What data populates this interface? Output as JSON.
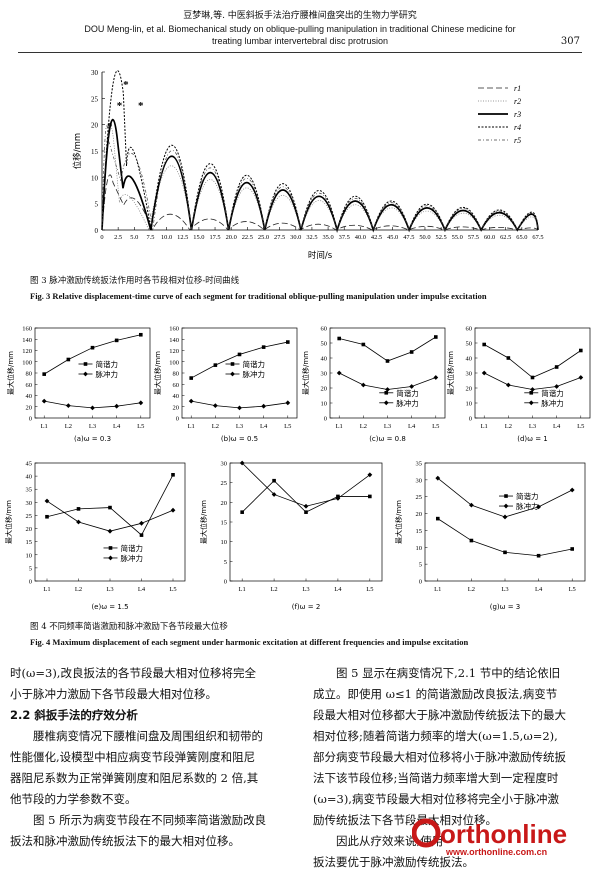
{
  "header": {
    "line1": "豆梦琳,等. 中医斜扳手法治疗腰椎间盘突出的生物力学研究",
    "line2": "DOU Meng-lin, et al.  Biomechanical study on oblique-pulling manipulation in traditional Chinese medicine for",
    "line3": "treating lumbar intervertebral disc protrusion",
    "page_number": "307"
  },
  "fig3": {
    "caption_cn": "图 3   脉冲激励传统扳法作用时各节段相对位移-时间曲线",
    "caption_en": "Fig. 3   Relative displacement-time curve of each segment for traditional oblique-pulling manipulation under impulse excitation"
  },
  "fig4": {
    "caption_cn": "图 4   不同频率简谐激励和脉冲激励下各节段最大位移",
    "caption_en": "Fig. 4   Maximum displacement of each segment under harmonic excitation at different frequencies and impulse excitation"
  },
  "chart_data": [
    {
      "id": "fig3",
      "type": "line",
      "xlabel": "时间/s",
      "ylabel": "位移/mm",
      "xlim": [
        0,
        67.5
      ],
      "ylim": [
        0,
        30
      ],
      "x_ticks": [
        "0",
        "2.5",
        "5.0",
        "7.5",
        "10.0",
        "12.5",
        "15.0",
        "17.5",
        "20.0",
        "22.5",
        "25.0",
        "27.5",
        "30.0",
        "32.5",
        "35.0",
        "37.5",
        "40.0",
        "42.5",
        "45.0",
        "47.5",
        "50.0",
        "52.5",
        "55.0",
        "57.5",
        "60.0",
        "62.5",
        "65.0",
        "67.5"
      ],
      "y_ticks": [
        "0",
        "5",
        "10",
        "15",
        "20",
        "25",
        "30"
      ],
      "legend_position": "right",
      "series": [
        {
          "name": "r1",
          "peaks": [
            [
              1.7,
              9
            ],
            [
              5,
              8.6
            ],
            [
              10.5,
              3.0
            ],
            [
              16.7,
              2.1
            ],
            [
              22.3,
              1.6
            ],
            [
              27.9,
              1.3
            ],
            [
              33.5,
              1.1
            ],
            [
              39,
              0.9
            ],
            [
              44.7,
              0.8
            ],
            [
              50.2,
              0.7
            ],
            [
              55.8,
              0.6
            ],
            [
              61.4,
              0.5
            ],
            [
              67,
              0.4
            ]
          ]
        },
        {
          "name": "r2",
          "peaks": [
            [
              1.8,
              17
            ],
            [
              3.6,
              9.5
            ],
            [
              10.9,
              12.2
            ],
            [
              16.8,
              9.6
            ],
            [
              22.4,
              8.0
            ],
            [
              28,
              6.6
            ],
            [
              33.6,
              5.6
            ],
            [
              39.2,
              4.8
            ],
            [
              44.8,
              4.2
            ],
            [
              50.3,
              3.6
            ],
            [
              55.9,
              3.2
            ],
            [
              61.5,
              2.8
            ],
            [
              67.1,
              2.5
            ]
          ]
        },
        {
          "name": "r3",
          "peaks": [
            [
              2.3,
              18
            ],
            [
              4.2,
              14.4
            ],
            [
              10.9,
              14.0
            ],
            [
              16.8,
              10.9
            ],
            [
              22.4,
              9.0
            ],
            [
              28,
              7.6
            ],
            [
              33.6,
              6.4
            ],
            [
              39.2,
              5.5
            ],
            [
              44.8,
              4.8
            ],
            [
              50.3,
              4.2
            ],
            [
              55.9,
              3.7
            ],
            [
              61.5,
              3.3
            ],
            [
              67.1,
              3.0
            ]
          ]
        },
        {
          "name": "r4",
          "peaks": [
            [
              3.3,
              26
            ],
            [
              4.3,
              22.1
            ],
            [
              10.9,
              16.1
            ],
            [
              16.8,
              12.6
            ],
            [
              22.4,
              10.4
            ],
            [
              28,
              8.8
            ],
            [
              33.6,
              7.5
            ],
            [
              39.2,
              6.4
            ],
            [
              44.8,
              5.5
            ],
            [
              50.3,
              4.9
            ],
            [
              55.9,
              4.3
            ],
            [
              61.5,
              3.8
            ],
            [
              67.1,
              3.4
            ]
          ]
        },
        {
          "name": "r5",
          "peaks": [
            [
              1.0,
              17
            ],
            [
              4.8,
              22.2
            ],
            [
              10.9,
              15.1
            ],
            [
              16.8,
              11.8
            ],
            [
              22.4,
              9.8
            ],
            [
              28,
              8.2
            ],
            [
              33.6,
              7.0
            ],
            [
              39.2,
              6.0
            ],
            [
              44.8,
              5.2
            ],
            [
              50.3,
              4.6
            ],
            [
              55.9,
              4.1
            ],
            [
              61.5,
              3.6
            ],
            [
              67.1,
              3.2
            ]
          ]
        }
      ],
      "annotations": [
        "*",
        "*",
        "*",
        "*"
      ]
    },
    {
      "id": "fig4a",
      "type": "line",
      "label": "(a)ω = 0.3",
      "categories": [
        "L1",
        "L2",
        "L3",
        "L4",
        "L5"
      ],
      "ylabel": "最大位移/mm",
      "ylim": [
        0,
        160
      ],
      "y_ticks": [
        "0",
        "20",
        "40",
        "60",
        "80",
        "100",
        "120",
        "140",
        "160"
      ],
      "series": [
        {
          "name": "简谐力",
          "values": [
            78,
            104,
            125,
            138,
            148
          ]
        },
        {
          "name": "脉冲力",
          "values": [
            30,
            22,
            18,
            21,
            27
          ]
        }
      ]
    },
    {
      "id": "fig4b",
      "type": "line",
      "label": "(b)ω = 0.5",
      "categories": [
        "L1",
        "L2",
        "L3",
        "L4",
        "L5"
      ],
      "ylabel": "最大位移/mm",
      "ylim": [
        0,
        160
      ],
      "y_ticks": [
        "0",
        "20",
        "40",
        "60",
        "80",
        "100",
        "120",
        "140",
        "160"
      ],
      "series": [
        {
          "name": "简谐力",
          "values": [
            71,
            94,
            113,
            126,
            135
          ]
        },
        {
          "name": "脉冲力",
          "values": [
            30,
            22,
            18,
            21,
            27
          ]
        }
      ]
    },
    {
      "id": "fig4c",
      "type": "line",
      "label": "(c)ω = 0.8",
      "categories": [
        "L1",
        "L2",
        "L3",
        "L4",
        "L5"
      ],
      "ylabel": "最大位移/mm",
      "ylim": [
        0,
        60
      ],
      "y_ticks": [
        "0",
        "10",
        "20",
        "30",
        "40",
        "50",
        "60"
      ],
      "series": [
        {
          "name": "简谐力",
          "values": [
            53,
            49,
            38,
            44,
            54
          ]
        },
        {
          "name": "脉冲力",
          "values": [
            30,
            22,
            19,
            21,
            27
          ]
        }
      ]
    },
    {
      "id": "fig4d",
      "type": "line",
      "label": "(d)ω = 1",
      "categories": [
        "L1",
        "L2",
        "L3",
        "L4",
        "L5"
      ],
      "ylabel": "最大位移/mm",
      "ylim": [
        0,
        60
      ],
      "y_ticks": [
        "0",
        "10",
        "20",
        "30",
        "40",
        "50",
        "60"
      ],
      "series": [
        {
          "name": "简谐力",
          "values": [
            49,
            40,
            27,
            34,
            45
          ]
        },
        {
          "name": "脉冲力",
          "values": [
            30,
            22,
            19,
            21,
            27
          ]
        }
      ]
    },
    {
      "id": "fig4e",
      "type": "line",
      "label": "(e)ω = 1.5",
      "categories": [
        "L1",
        "L2",
        "L3",
        "L4",
        "L5"
      ],
      "ylabel": "最大位移/mm",
      "ylim": [
        0,
        45
      ],
      "y_ticks": [
        "0",
        "5",
        "10",
        "15",
        "20",
        "25",
        "30",
        "35",
        "40",
        "45"
      ],
      "series": [
        {
          "name": "简谐力",
          "values": [
            24.5,
            27.5,
            28,
            17.5,
            40.5
          ]
        },
        {
          "name": "脉冲力",
          "values": [
            30.5,
            22.5,
            19,
            22,
            27
          ]
        }
      ]
    },
    {
      "id": "fig4f",
      "type": "line",
      "label": "(f)ω = 2",
      "categories": [
        "L1",
        "L2",
        "L3",
        "L4",
        "L5"
      ],
      "ylabel": "最大位移/mm",
      "ylim": [
        0,
        30
      ],
      "y_ticks": [
        "0",
        "5",
        "10",
        "15",
        "20",
        "25",
        "30"
      ],
      "series": [
        {
          "name": "简谐力",
          "values": [
            17.5,
            25.5,
            17.5,
            21.5,
            21.5
          ]
        },
        {
          "name": "脉冲力",
          "values": [
            30,
            22,
            19,
            21,
            27
          ]
        }
      ]
    },
    {
      "id": "fig4g",
      "type": "line",
      "label": "(g)ω = 3",
      "categories": [
        "L1",
        "L2",
        "L3",
        "L4",
        "L5"
      ],
      "ylabel": "最大位移/mm",
      "ylim": [
        0,
        35
      ],
      "y_ticks": [
        "0",
        "5",
        "10",
        "15",
        "20",
        "25",
        "30",
        "35"
      ],
      "series": [
        {
          "name": "简谐力",
          "values": [
            18.5,
            12,
            8.5,
            7.5,
            9.5
          ]
        },
        {
          "name": "脉冲力",
          "values": [
            30.5,
            22.5,
            19,
            22,
            27
          ]
        }
      ]
    }
  ],
  "left_column": {
    "p1_line1": "时(ω=3),改良扳法的各节段最大相对位移将完全",
    "p1_line2": "小于脉冲力激励下各节段最大相对位移。",
    "heading": "2.2   斜扳手法的疗效分析",
    "p2_line1": "腰椎病变情况下腰椎间盘及周围组织和韧带的",
    "p2_line2": "性能僵化,设模型中相应病变节段弹簧刚度和阻尼",
    "p2_line3": "器阻尼系数为正常弹簧刚度和阻尼系数的 2 倍,其",
    "p2_line4": "他节段的力学参数不变。",
    "p3_line1": "图 5 所示为病变节段在不同频率简谐激励改良",
    "p3_line2": "扳法和脉冲激励传统扳法下的最大相对位移。"
  },
  "right_column": {
    "l1": "图 5 显示在病变情况下,2.1 节中的结论依旧",
    "l2": "成立。即使用 ω≤1 的简谐激励改良扳法,病变节",
    "l3": "段最大相对位移都大于脉冲激励传统扳法下的最大",
    "l4": "相对位移;随着简谐力频率的增大(ω=1.5,ω=2),",
    "l5": "部分病变节段最大相对位移将小于脉冲激励传统扳",
    "l6": "法下该节段位移;当简谐力频率增大到一定程度时",
    "l7": "(ω=3),病变节段最大相对位移将完全小于脉冲激",
    "l8": "励传统扳法下各节段最大相对位移。",
    "l9": "因此从疗效来说,使用",
    "l10": "扳法要优于脉冲激励传统扳法。"
  },
  "watermark": {
    "logo_text": "orthonline",
    "url": "www.orthonline.com.cn"
  }
}
